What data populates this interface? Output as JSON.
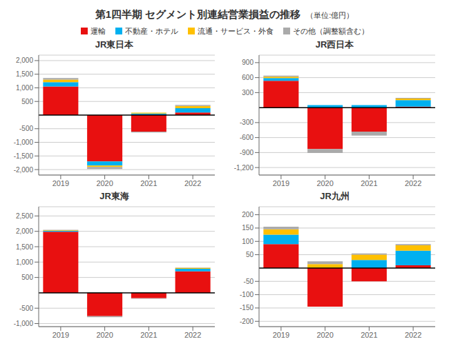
{
  "title": "第1四半期 セグメント別連結営業損益の推移",
  "subtitle": "（単位:億円）",
  "chart_data": [
    {
      "type": "bar",
      "title": "JR東日本",
      "stacked": true,
      "grid": true,
      "categories": [
        "2019",
        "2020",
        "2021",
        "2022"
      ],
      "series": [
        {
          "name": "運輸",
          "color": "#e81010",
          "values": [
            1050,
            -1700,
            -610,
            95
          ]
        },
        {
          "name": "不動産・ホテル",
          "color": "#00b0f0",
          "values": [
            160,
            -150,
            60,
            155
          ]
        },
        {
          "name": "流通・サービス・外食",
          "color": "#ffc000",
          "values": [
            90,
            -50,
            30,
            85
          ]
        },
        {
          "name": "その他（調整額含む）",
          "color": "#aaaaaa",
          "values": [
            60,
            -80,
            -30,
            35
          ]
        }
      ],
      "ylim": [
        -2200,
        2200
      ],
      "yticks": [
        {
          "value": -2000,
          "label": "-2,000"
        },
        {
          "value": -1500,
          "label": "-1,500"
        },
        {
          "value": -1000,
          "label": "-1,000"
        },
        -500,
        500,
        {
          "value": 1000,
          "label": "1,000"
        },
        {
          "value": 1500,
          "label": "1,500"
        },
        {
          "value": 2000,
          "label": "2,000"
        }
      ]
    },
    {
      "type": "bar",
      "title": "JR西日本",
      "stacked": true,
      "grid": true,
      "categories": [
        "2019",
        "2020",
        "2021",
        "2022"
      ],
      "series": [
        {
          "name": "運輸",
          "color": "#e81010",
          "values": [
            535,
            -830,
            -480,
            20
          ]
        },
        {
          "name": "不動産・ホテル",
          "color": "#00b0f0",
          "values": [
            55,
            50,
            50,
            130
          ]
        },
        {
          "name": "流通・サービス・外食",
          "color": "#ffc000",
          "values": [
            30,
            0,
            0,
            30
          ]
        },
        {
          "name": "その他（調整額含む）",
          "color": "#aaaaaa",
          "values": [
            20,
            -80,
            -80,
            15
          ]
        }
      ],
      "ylim": [
        -1350,
        1050
      ],
      "yticks": [
        {
          "value": -1200,
          "label": "-1,200"
        },
        -900,
        -600,
        -300,
        300,
        600,
        900
      ]
    },
    {
      "type": "bar",
      "title": "JR東海",
      "stacked": true,
      "grid": true,
      "categories": [
        "2019",
        "2020",
        "2021",
        "2022"
      ],
      "series": [
        {
          "name": "運輸",
          "color": "#e81010",
          "values": [
            1990,
            -760,
            -175,
            700
          ]
        },
        {
          "name": "不動産・ホテル",
          "color": "#00b0f0",
          "values": [
            30,
            10,
            10,
            80
          ]
        },
        {
          "name": "流通・サービス・外食",
          "color": "#ffc000",
          "values": [
            20,
            5,
            5,
            30
          ]
        },
        {
          "name": "その他（調整額含む）",
          "color": "#aaaaaa",
          "values": [
            10,
            -30,
            -20,
            10
          ]
        }
      ],
      "ylim": [
        -1100,
        2800
      ],
      "yticks": [
        {
          "value": -1000,
          "label": "-1,000"
        },
        -500,
        500,
        {
          "value": 1000,
          "label": "1,000"
        },
        {
          "value": 1500,
          "label": "1,500"
        },
        {
          "value": 2000,
          "label": "2,000"
        },
        {
          "value": 2500,
          "label": "2,500"
        }
      ]
    },
    {
      "type": "bar",
      "title": "JR九州",
      "stacked": true,
      "grid": true,
      "categories": [
        "2019",
        "2020",
        "2021",
        "2022"
      ],
      "series": [
        {
          "name": "運輸",
          "color": "#e81010",
          "values": [
            90,
            -145,
            -50,
            10
          ]
        },
        {
          "name": "不動産・ホテル",
          "color": "#00b0f0",
          "values": [
            35,
            0,
            30,
            55
          ]
        },
        {
          "name": "流通・サービス・外食",
          "color": "#ffc000",
          "values": [
            20,
            15,
            20,
            20
          ]
        },
        {
          "name": "その他（調整額含む）",
          "color": "#aaaaaa",
          "values": [
            10,
            10,
            5,
            5
          ]
        }
      ],
      "ylim": [
        -220,
        230
      ],
      "yticks": [
        -200,
        -150,
        -100,
        -50,
        50,
        100,
        150,
        200
      ]
    }
  ]
}
